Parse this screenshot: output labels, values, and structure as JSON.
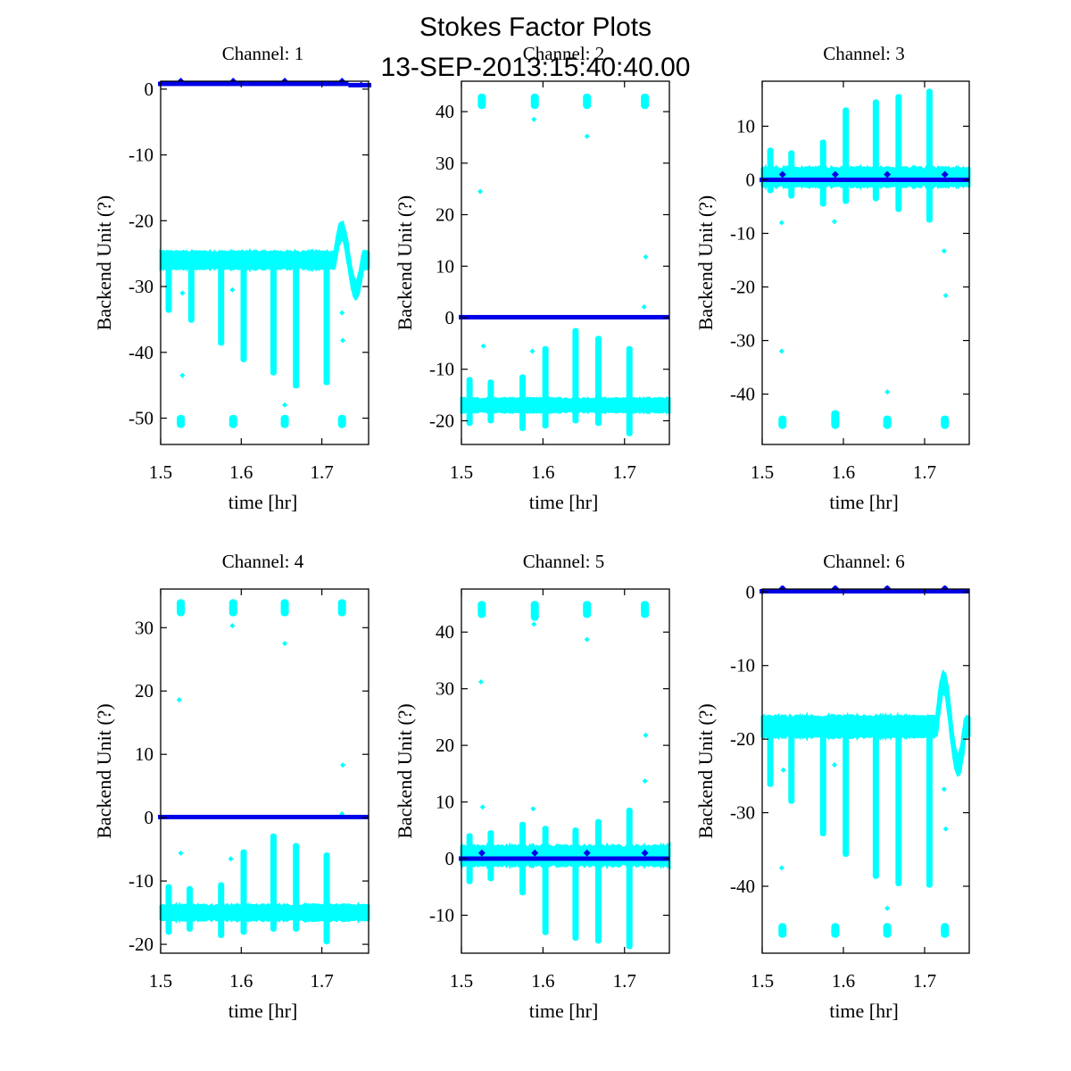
{
  "figure": {
    "title_line1": "Stokes Factor Plots",
    "title_line2": "13-SEP-2013:15:40:40.00"
  },
  "colors": {
    "series_a": "#00FFFF",
    "series_b": "#0000E8",
    "axes": "#000000"
  },
  "chart_data": [
    {
      "type": "scatter",
      "title": "Channel: 1",
      "xlabel": "time [hr]",
      "ylabel": "Backend Unit (?)",
      "xlim": [
        1.5,
        1.758
      ],
      "ylim": [
        -54,
        1.2
      ],
      "xticks": [
        1.5,
        1.6,
        1.7
      ],
      "xtick_labels": [
        "1.5",
        "1.6",
        "1.7"
      ],
      "yticks": [
        0,
        -10,
        -20,
        -30,
        -40,
        -50
      ],
      "ytick_labels": [
        "0",
        "-10",
        "-20",
        "-30",
        "-40",
        "-50"
      ],
      "grid": false,
      "series_a": {
        "baseline": -26,
        "band_half_width": 1.2,
        "bump": {
          "x": 1.735,
          "peak": -21.5,
          "trough_x": 1.751,
          "trough": -30.5
        },
        "spikes": [
          [
            1.51,
            -34
          ],
          [
            1.538,
            -35.5
          ],
          [
            1.575,
            -39
          ],
          [
            1.603,
            -41.5
          ],
          [
            1.64,
            -43.5
          ],
          [
            1.668,
            -45.5
          ],
          [
            1.706,
            -45
          ]
        ],
        "clusters": [
          [
            1.525,
            -51.5,
            -49.5
          ],
          [
            1.59,
            -51.5,
            -49.5
          ],
          [
            1.654,
            -51.5,
            -49.5
          ],
          [
            1.725,
            -51.5,
            -49.5
          ]
        ],
        "outliers": [
          [
            1.527,
            -31
          ],
          [
            1.527,
            -43.5
          ],
          [
            1.589,
            -30.5
          ],
          [
            1.654,
            -48
          ],
          [
            1.725,
            -34
          ],
          [
            1.726,
            -38.2
          ]
        ]
      },
      "series_b": {
        "level": 0.8,
        "jitter": 0.15,
        "marks": [
          [
            1.525,
            1.2
          ],
          [
            1.59,
            1.2
          ],
          [
            1.654,
            1.2
          ],
          [
            1.725,
            1.2
          ]
        ],
        "tail_drop": -0.2
      }
    },
    {
      "type": "scatter",
      "title": "Channel: 2",
      "xlabel": "time [hr]",
      "ylabel": "Backend Unit (?)",
      "xlim": [
        1.5,
        1.755
      ],
      "ylim": [
        -24.6,
        45.9
      ],
      "xticks": [
        1.5,
        1.6,
        1.7
      ],
      "xtick_labels": [
        "1.5",
        "1.6",
        "1.7"
      ],
      "yticks": [
        40,
        30,
        20,
        10,
        0,
        -10,
        -20
      ],
      "ytick_labels": [
        "40",
        "30",
        "20",
        "10",
        "0",
        "-10",
        "-20"
      ],
      "grid": false,
      "series_a": {
        "baseline": -17,
        "band_half_width": 1.2,
        "spikes": [
          [
            1.51,
            -11.5,
            -21
          ],
          [
            1.536,
            -12,
            -20.5
          ],
          [
            1.575,
            -11,
            -22
          ],
          [
            1.603,
            -5.5,
            -21.5
          ],
          [
            1.64,
            -2,
            -20.5
          ],
          [
            1.668,
            -3.5,
            -21
          ],
          [
            1.706,
            -5.5,
            -23
          ]
        ],
        "clusters": [
          [
            1.525,
            40.5,
            43.5
          ],
          [
            1.59,
            40.5,
            43.5
          ],
          [
            1.654,
            40.5,
            43.5
          ],
          [
            1.725,
            40.5,
            43.5
          ]
        ],
        "outliers": [
          [
            1.523,
            24.5
          ],
          [
            1.527,
            -5.5
          ],
          [
            1.589,
            38.5
          ],
          [
            1.587,
            -6.5
          ],
          [
            1.654,
            35.2
          ],
          [
            1.726,
            11.8
          ],
          [
            1.724,
            2.1
          ]
        ]
      },
      "series_b": {
        "level": 0.1,
        "jitter": 0.15,
        "marks": [],
        "tail_drop": 0
      }
    },
    {
      "type": "scatter",
      "title": "Channel: 3",
      "xlabel": "time [hr]",
      "ylabel": "Backend Unit (?)",
      "xlim": [
        1.5,
        1.755
      ],
      "ylim": [
        -49.4,
        18.4
      ],
      "xticks": [
        1.5,
        1.6,
        1.7
      ],
      "xtick_labels": [
        "1.5",
        "1.6",
        "1.7"
      ],
      "yticks": [
        10,
        0,
        -10,
        -20,
        -30,
        -40
      ],
      "ytick_labels": [
        "10",
        "0",
        "-10",
        "-20",
        "-30",
        "-40"
      ],
      "grid": false,
      "series_a": {
        "baseline": 0.5,
        "band_half_width": 1.6,
        "spikes": [
          [
            1.51,
            6,
            -2.5
          ],
          [
            1.536,
            5.5,
            -3.5
          ],
          [
            1.575,
            7.5,
            -5
          ],
          [
            1.603,
            13.5,
            -4.5
          ],
          [
            1.64,
            15,
            -4
          ],
          [
            1.668,
            16,
            -6
          ],
          [
            1.706,
            17,
            -8
          ]
        ],
        "clusters": [
          [
            1.525,
            -46.5,
            -44
          ],
          [
            1.59,
            -46.5,
            -43
          ],
          [
            1.654,
            -46.5,
            -44
          ],
          [
            1.725,
            -46.5,
            -44
          ]
        ],
        "outliers": [
          [
            1.524,
            -8
          ],
          [
            1.524,
            -32
          ],
          [
            1.589,
            -7.8
          ],
          [
            1.654,
            -39.6
          ],
          [
            1.724,
            -13.3
          ],
          [
            1.726,
            -21.6
          ]
        ]
      },
      "series_b": {
        "level": 0,
        "jitter": 0.15,
        "marks": [
          [
            1.525,
            1
          ],
          [
            1.59,
            1
          ],
          [
            1.654,
            1
          ],
          [
            1.725,
            1
          ]
        ],
        "tail_drop": 0
      }
    },
    {
      "type": "scatter",
      "title": "Channel: 4",
      "xlabel": "time [hr]",
      "ylabel": "Backend Unit (?)",
      "xlim": [
        1.5,
        1.758
      ],
      "ylim": [
        -21.4,
        36.1
      ],
      "xticks": [
        1.5,
        1.6,
        1.7
      ],
      "xtick_labels": [
        "1.5",
        "1.6",
        "1.7"
      ],
      "yticks": [
        30,
        20,
        10,
        0,
        -10,
        -20
      ],
      "ytick_labels": [
        "30",
        "20",
        "10",
        "0",
        "-10",
        "-20"
      ],
      "grid": false,
      "series_a": {
        "baseline": -15,
        "band_half_width": 1.1,
        "spikes": [
          [
            1.51,
            -10.5,
            -18.5
          ],
          [
            1.536,
            -10.8,
            -18
          ],
          [
            1.575,
            -10.2,
            -19
          ],
          [
            1.603,
            -5,
            -18.5
          ],
          [
            1.64,
            -2.5,
            -18
          ],
          [
            1.668,
            -4,
            -18
          ],
          [
            1.706,
            -5.5,
            -20
          ]
        ],
        "clusters": [
          [
            1.525,
            31.8,
            34.5
          ],
          [
            1.59,
            31.8,
            34.5
          ],
          [
            1.654,
            31.8,
            34.5
          ],
          [
            1.725,
            31.8,
            34.5
          ]
        ],
        "outliers": [
          [
            1.523,
            18.6
          ],
          [
            1.525,
            -5.6
          ],
          [
            1.589,
            30.3
          ],
          [
            1.587,
            -6.5
          ],
          [
            1.654,
            27.5
          ],
          [
            1.726,
            8.3
          ],
          [
            1.725,
            0.6
          ]
        ]
      },
      "series_b": {
        "level": 0.1,
        "jitter": 0.12,
        "marks": [],
        "tail_drop": 0
      }
    },
    {
      "type": "scatter",
      "title": "Channel: 5",
      "xlabel": "time [hr]",
      "ylabel": "Backend Unit (?)",
      "xlim": [
        1.5,
        1.755
      ],
      "ylim": [
        -16.7,
        47.6
      ],
      "xticks": [
        1.5,
        1.6,
        1.7
      ],
      "xtick_labels": [
        "1.5",
        "1.6",
        "1.7"
      ],
      "yticks": [
        40,
        30,
        20,
        10,
        0,
        -10
      ],
      "ytick_labels": [
        "40",
        "30",
        "20",
        "10",
        "0",
        "-10"
      ],
      "grid": false,
      "series_a": {
        "baseline": 0.5,
        "band_half_width": 1.6,
        "spikes": [
          [
            1.51,
            4.5,
            -4.5
          ],
          [
            1.536,
            5,
            -4
          ],
          [
            1.575,
            6.5,
            -6.5
          ],
          [
            1.603,
            5.8,
            -13.5
          ],
          [
            1.64,
            5.5,
            -14.5
          ],
          [
            1.668,
            7,
            -15
          ],
          [
            1.706,
            9,
            -16
          ]
        ],
        "clusters": [
          [
            1.525,
            42.5,
            45.5
          ],
          [
            1.59,
            42,
            45.5
          ],
          [
            1.654,
            42.5,
            45.5
          ],
          [
            1.725,
            42.5,
            45.5
          ]
        ],
        "outliers": [
          [
            1.524,
            31.2
          ],
          [
            1.526,
            9.1
          ],
          [
            1.589,
            41.4
          ],
          [
            1.588,
            8.8
          ],
          [
            1.654,
            38.7
          ],
          [
            1.726,
            21.8
          ],
          [
            1.725,
            13.7
          ]
        ]
      },
      "series_b": {
        "level": 0,
        "jitter": 0.15,
        "marks": [
          [
            1.525,
            1
          ],
          [
            1.59,
            1
          ],
          [
            1.654,
            1
          ],
          [
            1.725,
            1
          ]
        ],
        "tail_drop": 0
      }
    },
    {
      "type": "scatter",
      "title": "Channel: 6",
      "xlabel": "time [hr]",
      "ylabel": "Backend Unit (?)",
      "xlim": [
        1.5,
        1.755
      ],
      "ylim": [
        -49.1,
        0.4
      ],
      "xticks": [
        1.5,
        1.6,
        1.7
      ],
      "xtick_labels": [
        "1.5",
        "1.6",
        "1.7"
      ],
      "yticks": [
        0,
        -10,
        -20,
        -30,
        -40
      ],
      "ytick_labels": [
        "0",
        "-10",
        "-20",
        "-30",
        "-40"
      ],
      "grid": false,
      "series_a": {
        "baseline": -18.3,
        "band_half_width": 1.3,
        "bump": {
          "x": 1.734,
          "peak": -12.3,
          "trough_x": 1.75,
          "trough": -23.5
        },
        "spikes": [
          [
            1.51,
            -26.5
          ],
          [
            1.536,
            -28.8
          ],
          [
            1.575,
            -33.2
          ],
          [
            1.603,
            -36
          ],
          [
            1.64,
            -39
          ],
          [
            1.668,
            -40
          ],
          [
            1.706,
            -40.2
          ]
        ],
        "clusters": [
          [
            1.525,
            -47,
            -45
          ],
          [
            1.59,
            -47,
            -45
          ],
          [
            1.654,
            -47,
            -45
          ],
          [
            1.725,
            -47,
            -45
          ]
        ],
        "outliers": [
          [
            1.526,
            -24.2
          ],
          [
            1.524,
            -37.5
          ],
          [
            1.589,
            -23.5
          ],
          [
            1.654,
            -43
          ],
          [
            1.724,
            -26.8
          ],
          [
            1.726,
            -32.2
          ]
        ]
      },
      "series_b": {
        "level": 0.1,
        "jitter": 0.12,
        "marks": [
          [
            1.525,
            0.5
          ],
          [
            1.59,
            0.5
          ],
          [
            1.654,
            0.5
          ],
          [
            1.725,
            0.5
          ]
        ],
        "tail_drop": 0
      }
    }
  ]
}
